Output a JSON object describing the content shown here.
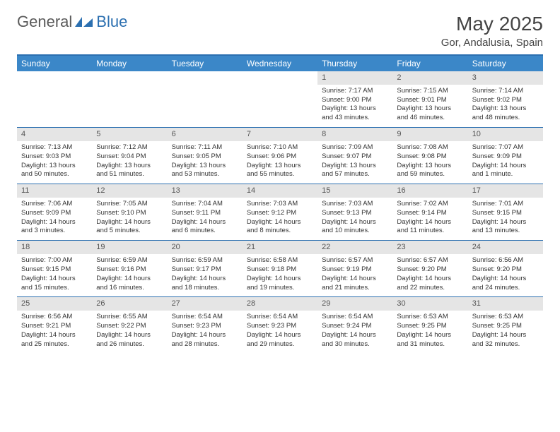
{
  "logo": {
    "general": "General",
    "blue": "Blue"
  },
  "title": "May 2025",
  "location": "Gor, Andalusia, Spain",
  "columns": [
    "Sunday",
    "Monday",
    "Tuesday",
    "Wednesday",
    "Thursday",
    "Friday",
    "Saturday"
  ],
  "colors": {
    "header_bg": "#3b87c8",
    "border": "#2b6fb0",
    "daynum_bg": "#e5e5e5",
    "text": "#333333"
  },
  "weeks": [
    [
      null,
      null,
      null,
      null,
      {
        "n": "1",
        "sr": "7:17 AM",
        "ss": "9:00 PM",
        "dl": "13 hours and 43 minutes."
      },
      {
        "n": "2",
        "sr": "7:15 AM",
        "ss": "9:01 PM",
        "dl": "13 hours and 46 minutes."
      },
      {
        "n": "3",
        "sr": "7:14 AM",
        "ss": "9:02 PM",
        "dl": "13 hours and 48 minutes."
      }
    ],
    [
      {
        "n": "4",
        "sr": "7:13 AM",
        "ss": "9:03 PM",
        "dl": "13 hours and 50 minutes."
      },
      {
        "n": "5",
        "sr": "7:12 AM",
        "ss": "9:04 PM",
        "dl": "13 hours and 51 minutes."
      },
      {
        "n": "6",
        "sr": "7:11 AM",
        "ss": "9:05 PM",
        "dl": "13 hours and 53 minutes."
      },
      {
        "n": "7",
        "sr": "7:10 AM",
        "ss": "9:06 PM",
        "dl": "13 hours and 55 minutes."
      },
      {
        "n": "8",
        "sr": "7:09 AM",
        "ss": "9:07 PM",
        "dl": "13 hours and 57 minutes."
      },
      {
        "n": "9",
        "sr": "7:08 AM",
        "ss": "9:08 PM",
        "dl": "13 hours and 59 minutes."
      },
      {
        "n": "10",
        "sr": "7:07 AM",
        "ss": "9:09 PM",
        "dl": "14 hours and 1 minute."
      }
    ],
    [
      {
        "n": "11",
        "sr": "7:06 AM",
        "ss": "9:09 PM",
        "dl": "14 hours and 3 minutes."
      },
      {
        "n": "12",
        "sr": "7:05 AM",
        "ss": "9:10 PM",
        "dl": "14 hours and 5 minutes."
      },
      {
        "n": "13",
        "sr": "7:04 AM",
        "ss": "9:11 PM",
        "dl": "14 hours and 6 minutes."
      },
      {
        "n": "14",
        "sr": "7:03 AM",
        "ss": "9:12 PM",
        "dl": "14 hours and 8 minutes."
      },
      {
        "n": "15",
        "sr": "7:03 AM",
        "ss": "9:13 PM",
        "dl": "14 hours and 10 minutes."
      },
      {
        "n": "16",
        "sr": "7:02 AM",
        "ss": "9:14 PM",
        "dl": "14 hours and 11 minutes."
      },
      {
        "n": "17",
        "sr": "7:01 AM",
        "ss": "9:15 PM",
        "dl": "14 hours and 13 minutes."
      }
    ],
    [
      {
        "n": "18",
        "sr": "7:00 AM",
        "ss": "9:15 PM",
        "dl": "14 hours and 15 minutes."
      },
      {
        "n": "19",
        "sr": "6:59 AM",
        "ss": "9:16 PM",
        "dl": "14 hours and 16 minutes."
      },
      {
        "n": "20",
        "sr": "6:59 AM",
        "ss": "9:17 PM",
        "dl": "14 hours and 18 minutes."
      },
      {
        "n": "21",
        "sr": "6:58 AM",
        "ss": "9:18 PM",
        "dl": "14 hours and 19 minutes."
      },
      {
        "n": "22",
        "sr": "6:57 AM",
        "ss": "9:19 PM",
        "dl": "14 hours and 21 minutes."
      },
      {
        "n": "23",
        "sr": "6:57 AM",
        "ss": "9:20 PM",
        "dl": "14 hours and 22 minutes."
      },
      {
        "n": "24",
        "sr": "6:56 AM",
        "ss": "9:20 PM",
        "dl": "14 hours and 24 minutes."
      }
    ],
    [
      {
        "n": "25",
        "sr": "6:56 AM",
        "ss": "9:21 PM",
        "dl": "14 hours and 25 minutes."
      },
      {
        "n": "26",
        "sr": "6:55 AM",
        "ss": "9:22 PM",
        "dl": "14 hours and 26 minutes."
      },
      {
        "n": "27",
        "sr": "6:54 AM",
        "ss": "9:23 PM",
        "dl": "14 hours and 28 minutes."
      },
      {
        "n": "28",
        "sr": "6:54 AM",
        "ss": "9:23 PM",
        "dl": "14 hours and 29 minutes."
      },
      {
        "n": "29",
        "sr": "6:54 AM",
        "ss": "9:24 PM",
        "dl": "14 hours and 30 minutes."
      },
      {
        "n": "30",
        "sr": "6:53 AM",
        "ss": "9:25 PM",
        "dl": "14 hours and 31 minutes."
      },
      {
        "n": "31",
        "sr": "6:53 AM",
        "ss": "9:25 PM",
        "dl": "14 hours and 32 minutes."
      }
    ]
  ],
  "labels": {
    "sunrise": "Sunrise: ",
    "sunset": "Sunset: ",
    "daylight": "Daylight: "
  }
}
